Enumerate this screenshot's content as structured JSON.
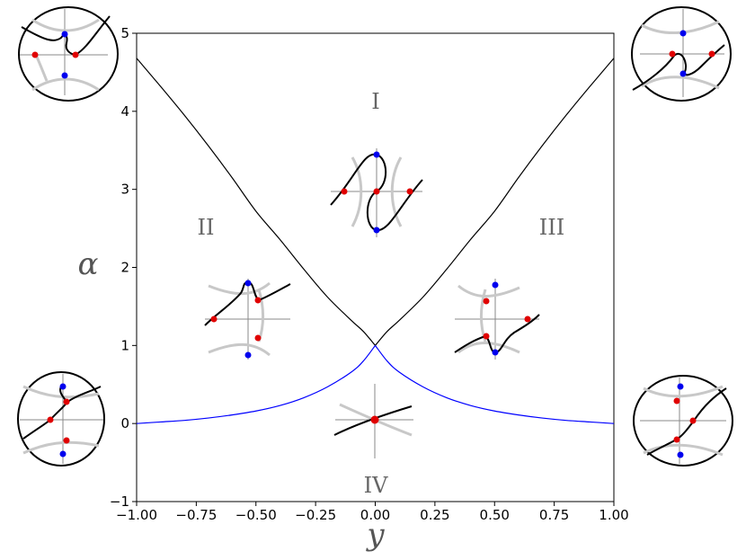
{
  "chart_data": {
    "type": "line",
    "title": "",
    "xlabel": "y",
    "ylabel": "α",
    "xlim": [
      -1.0,
      1.0
    ],
    "ylim": [
      -1,
      5
    ],
    "xticks": [
      "−1.00",
      "−0.75",
      "−0.50",
      "−0.25",
      "0.00",
      "0.25",
      "0.50",
      "0.75",
      "1.00"
    ],
    "yticks": [
      "−1",
      "0",
      "1",
      "2",
      "3",
      "4",
      "5"
    ],
    "grid": false,
    "series": [
      {
        "color": "#000000",
        "x": [
          -1.0,
          -0.9,
          -0.8,
          -0.7,
          -0.6,
          -0.5,
          -0.4,
          -0.3,
          -0.2,
          -0.1,
          -0.05,
          0.0
        ],
        "y": [
          4.68,
          4.32,
          3.95,
          3.56,
          3.15,
          2.72,
          2.36,
          1.98,
          1.62,
          1.32,
          1.18,
          1.0
        ]
      },
      {
        "color": "#000000",
        "x": [
          0.0,
          0.05,
          0.1,
          0.2,
          0.3,
          0.4,
          0.5,
          0.6,
          0.7,
          0.8,
          0.9,
          1.0
        ],
        "y": [
          1.0,
          1.18,
          1.32,
          1.62,
          1.98,
          2.36,
          2.72,
          3.15,
          3.56,
          3.95,
          4.32,
          4.68
        ]
      },
      {
        "color": "#0000ff",
        "x": [
          -1.0,
          -0.9,
          -0.8,
          -0.7,
          -0.6,
          -0.5,
          -0.4,
          -0.3,
          -0.2,
          -0.1,
          -0.05,
          0.0
        ],
        "y": [
          0.0,
          0.02,
          0.04,
          0.07,
          0.11,
          0.16,
          0.23,
          0.33,
          0.47,
          0.66,
          0.8,
          1.0
        ]
      },
      {
        "color": "#0000ff",
        "x": [
          0.0,
          0.05,
          0.1,
          0.2,
          0.3,
          0.4,
          0.5,
          0.6,
          0.7,
          0.8,
          0.9,
          1.0
        ],
        "y": [
          1.0,
          0.8,
          0.66,
          0.47,
          0.33,
          0.23,
          0.16,
          0.11,
          0.07,
          0.04,
          0.02,
          0.0
        ]
      }
    ],
    "region_labels": [
      {
        "text": "I",
        "x": 0.0,
        "y": 4.15
      },
      {
        "text": "II",
        "x": -0.7,
        "y": 2.5
      },
      {
        "text": "III",
        "x": 0.7,
        "y": 2.5
      },
      {
        "text": "IV",
        "x": 0.0,
        "y": -0.8
      }
    ],
    "colors": {
      "critical_point_red": "#e00000",
      "critical_point_blue": "#0000ee",
      "level_curve_gray": "#c8c8c8"
    }
  }
}
